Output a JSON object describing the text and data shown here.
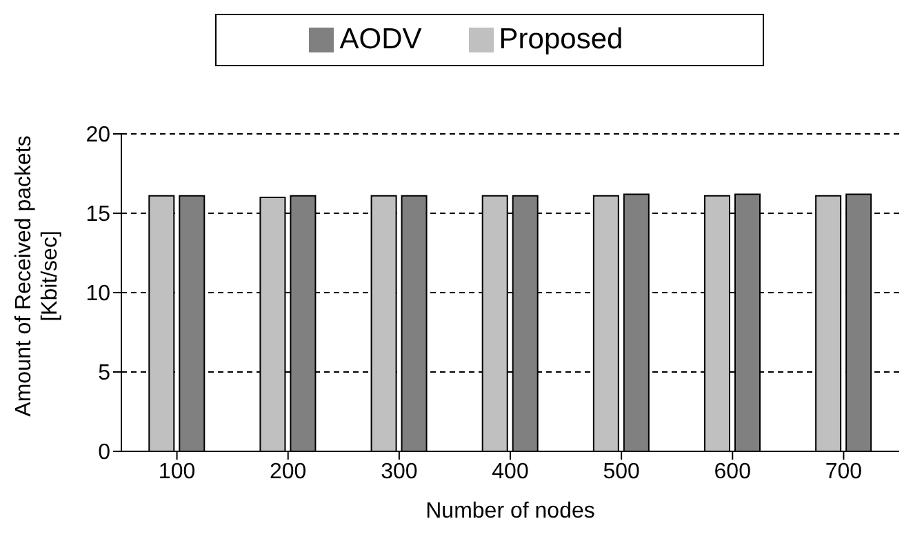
{
  "chart_data": {
    "type": "bar",
    "xlabel": "Number of nodes",
    "ylabel": "Amount of Received packets [Kbit/sec]",
    "categories": [
      "100",
      "200",
      "300",
      "400",
      "500",
      "600",
      "700"
    ],
    "series": [
      {
        "name": "Proposed",
        "color": "#c0c0c0",
        "values": [
          16.1,
          16.0,
          16.1,
          16.1,
          16.1,
          16.1,
          16.1
        ]
      },
      {
        "name": "AODV",
        "color": "#808080",
        "values": [
          16.1,
          16.1,
          16.1,
          16.1,
          16.2,
          16.2,
          16.2
        ]
      }
    ],
    "ylim": [
      0,
      20
    ],
    "yticks": [
      0,
      5,
      10,
      15,
      20
    ],
    "grid": "y",
    "legend": "top"
  }
}
